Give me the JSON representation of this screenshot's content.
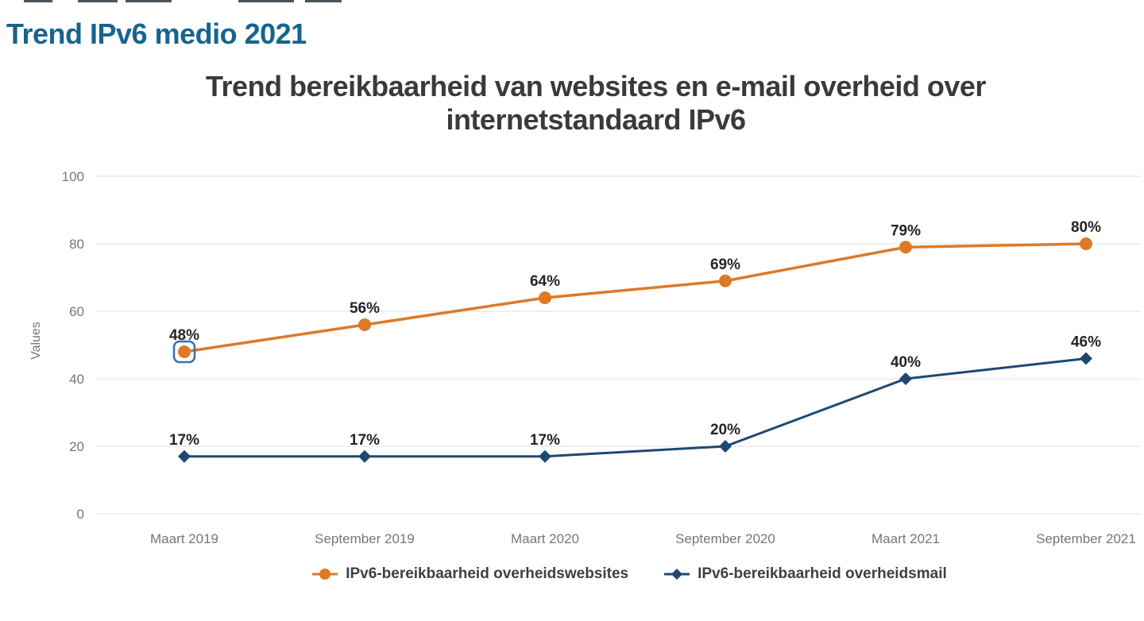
{
  "page": {
    "heading": "Trend IPv6 medio 2021"
  },
  "chart_data": {
    "type": "line",
    "title": "Trend bereikbaarheid van websites en e-mail overheid over internetstandaard IPv6",
    "title_lines": [
      "Trend bereikbaarheid van websites en e-mail overheid over",
      "internetstandaard IPv6"
    ],
    "ylabel": "Values",
    "xlabel": "",
    "ylim": [
      0,
      100
    ],
    "yticks": [
      0,
      20,
      40,
      60,
      80,
      100
    ],
    "grid": true,
    "legend_position": "bottom",
    "categories": [
      "Maart 2019",
      "September 2019",
      "Maart 2020",
      "September 2020",
      "Maart 2021",
      "September 2021"
    ],
    "series": [
      {
        "name": "IPv6-bereikbaarheid overheidswebsites",
        "color": "#dc7a28",
        "marker": "circle",
        "values": [
          48,
          56,
          64,
          69,
          79,
          80
        ],
        "labels": [
          "48%",
          "56%",
          "64%",
          "69%",
          "79%",
          "80%"
        ]
      },
      {
        "name": "IPv6-bereikbaarheid overheidsmail",
        "color": "#1e4872",
        "marker": "diamond",
        "values": [
          17,
          17,
          17,
          20,
          40,
          46
        ],
        "labels": [
          "17%",
          "17%",
          "17%",
          "20%",
          "40%",
          "46%"
        ]
      }
    ],
    "selected_point": {
      "series_index": 0,
      "category_index": 0,
      "category": "Maart 2019",
      "value": 48
    }
  },
  "colors": {
    "heading": "#16648e",
    "title": "#3a3a39",
    "axis_text": "#767675",
    "data_label": "#252423",
    "gridline": "#e2e2e2",
    "focus_ring": "#3a6ea8"
  }
}
